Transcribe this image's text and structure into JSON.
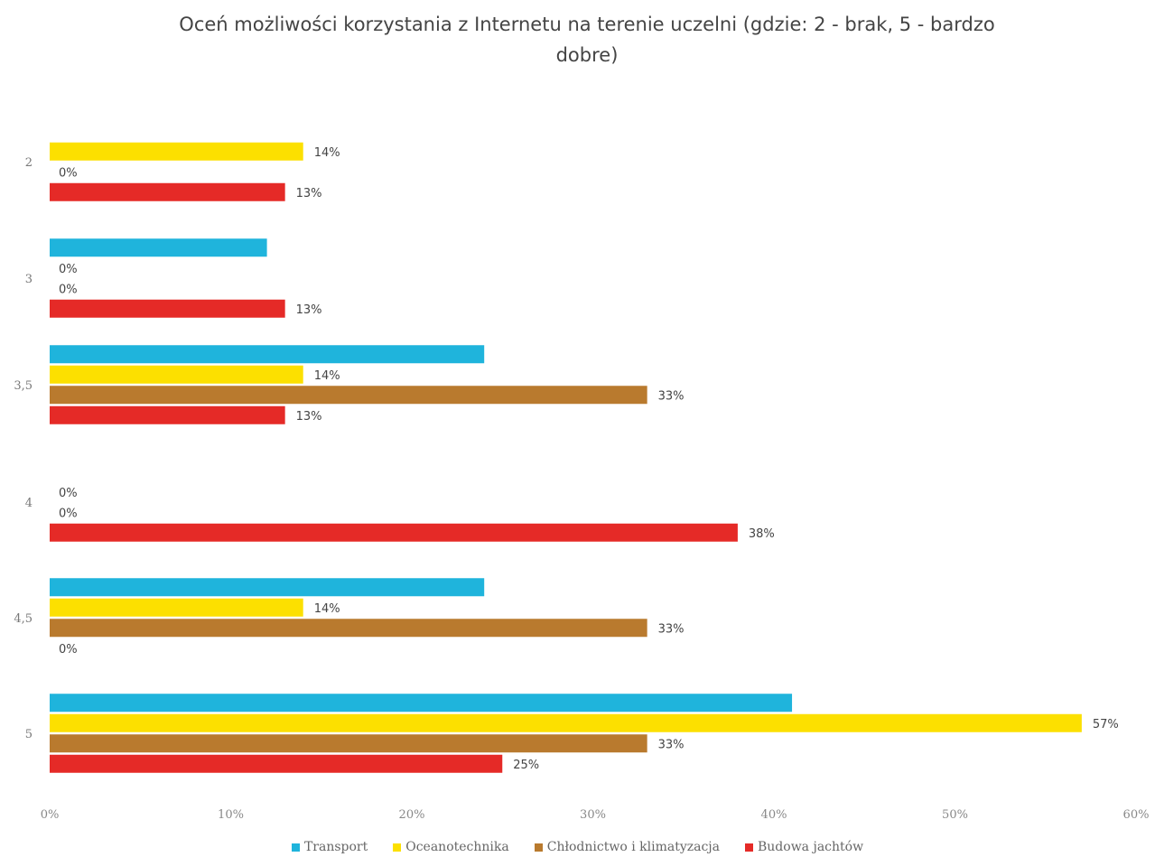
{
  "chart_data": {
    "type": "bar",
    "orientation": "horizontal",
    "title_line1": "Oceń możliwości korzystania z Internetu na terenie uczelni (gdzie: 2 - brak, 5 - bardzo",
    "title_line2": "dobre)",
    "categories": [
      "2",
      "3",
      "3,5",
      "4",
      "4,5",
      "5"
    ],
    "series": [
      {
        "name": "Transport",
        "color": "#1fb4dc",
        "values": [
          0,
          12,
          24,
          0,
          24,
          41
        ],
        "labels": [
          "",
          "",
          "",
          "",
          "",
          ""
        ]
      },
      {
        "name": "Oceanotechnika",
        "color": "#fce000",
        "values": [
          14,
          0,
          14,
          0,
          14,
          57
        ],
        "labels": [
          "14%",
          "0%",
          "14%",
          "0%",
          "14%",
          "57%"
        ]
      },
      {
        "name": "Chłodnictwo i klimatyzacja",
        "color": "#b97a2e",
        "values": [
          0,
          0,
          33,
          0,
          33,
          33
        ],
        "labels": [
          "0%",
          "0%",
          "33%",
          "0%",
          "33%",
          "33%"
        ]
      },
      {
        "name": "Budowa jachtów",
        "color": "#e52a27",
        "values": [
          13,
          13,
          13,
          38,
          0,
          25
        ],
        "labels": [
          "13%",
          "13%",
          "13%",
          "38%",
          "0%",
          "25%"
        ]
      }
    ],
    "xlim": [
      0,
      60
    ],
    "x_ticks": [
      "0%",
      "10%",
      "20%",
      "30%",
      "40%",
      "50%",
      "60%"
    ],
    "unit": "%",
    "grid": false,
    "legend_position": "bottom"
  }
}
